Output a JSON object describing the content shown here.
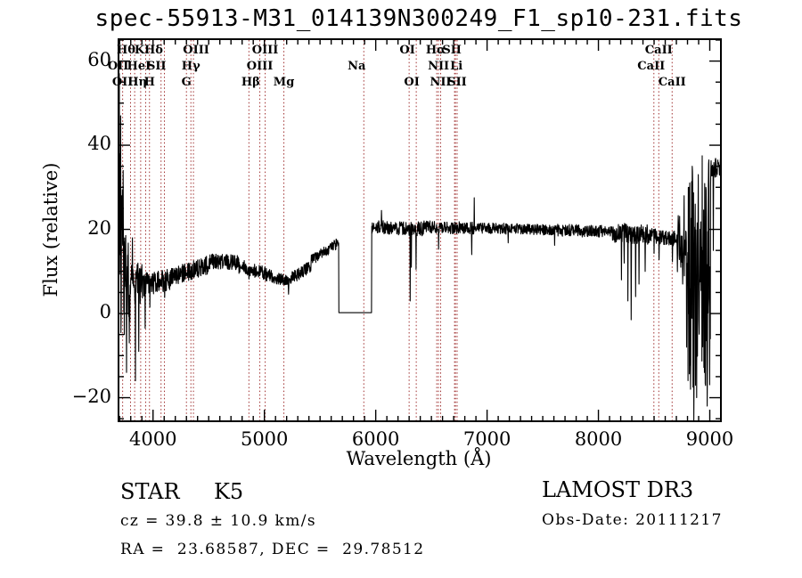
{
  "page": {
    "title": "spec-55913-M31_014139N300249_F1_sp10-231.fits",
    "background": "#ffffff"
  },
  "info": {
    "class_label": "STAR",
    "subclass": "K5",
    "cz_line": "cz = 39.8 ± 10.9 km/s",
    "radec_line": "RA =  23.68587, DEC =  29.78512",
    "survey": "LAMOST DR3",
    "obs_date_line": "Obs-Date: 20111217"
  },
  "colors": {
    "spectrum_line": "#000000",
    "spectral_marker": "#a03030",
    "axis": "#000000",
    "background": "#ffffff"
  },
  "chart_data": {
    "type": "line",
    "title": "spec-55913-M31_014139N300249_F1_sp10-231.fits",
    "xlabel": "Wavelength (Å)",
    "ylabel": "Flux (relative)",
    "xlim": [
      3690,
      9100
    ],
    "ylim": [
      -25.6,
      65.2
    ],
    "xticks": [
      4000,
      5000,
      6000,
      7000,
      8000,
      9000
    ],
    "yticks": [
      -20,
      0,
      20,
      40,
      60
    ],
    "x_minor_step": 100,
    "y_minor_step": 5,
    "grid": false,
    "legend": null,
    "spectral_lines_angstrom": [
      3727,
      3798,
      3835,
      3889,
      3934,
      3968,
      4072,
      4102,
      4300,
      4340,
      4363,
      4861,
      4959,
      5007,
      5175,
      5893,
      6300,
      6364,
      6548,
      6563,
      6583,
      6708,
      6716,
      6731,
      8498,
      8542,
      8662
    ],
    "line_labels": [
      {
        "text": "Hθ",
        "row": 1,
        "wavelength": 3798,
        "dx": -5
      },
      {
        "text": "K",
        "row": 1,
        "wavelength": 3934,
        "dx": -7
      },
      {
        "text": "Hδ",
        "row": 1,
        "wavelength": 4102,
        "dx": -12
      },
      {
        "text": "OIII",
        "row": 1,
        "wavelength": 4363,
        "dx": 3
      },
      {
        "text": "OIII",
        "row": 1,
        "wavelength": 5007,
        "dx": 0
      },
      {
        "text": "OI",
        "row": 1,
        "wavelength": 6300,
        "dx": -2
      },
      {
        "text": "Hα",
        "row": 1,
        "wavelength": 6563,
        "dx": -3
      },
      {
        "text": "SII",
        "row": 1,
        "wavelength": 6716,
        "dx": -4
      },
      {
        "text": "CaII",
        "row": 1,
        "wavelength": 8542,
        "dx": 0
      },
      {
        "text": "OII",
        "row": 2,
        "wavelength": 3727,
        "dx": -5
      },
      {
        "text": "HeI",
        "row": 2,
        "wavelength": 3889,
        "dx": -2
      },
      {
        "text": "SII",
        "row": 2,
        "wavelength": 4072,
        "dx": -5
      },
      {
        "text": "Hγ",
        "row": 2,
        "wavelength": 4340,
        "dx": 0
      },
      {
        "text": "OIII",
        "row": 2,
        "wavelength": 4959,
        "dx": 0
      },
      {
        "text": "Na",
        "row": 2,
        "wavelength": 5893,
        "dx": -8
      },
      {
        "text": "NII",
        "row": 2,
        "wavelength": 6548,
        "dx": 2
      },
      {
        "text": "Li",
        "row": 2,
        "wavelength": 6708,
        "dx": 2
      },
      {
        "text": "CaII",
        "row": 2,
        "wavelength": 8498,
        "dx": -3
      },
      {
        "text": "OII",
        "row": 3,
        "wavelength": 3727,
        "dx": 0
      },
      {
        "text": "Hη",
        "row": 3,
        "wavelength": 3835,
        "dx": 3
      },
      {
        "text": "H",
        "row": 3,
        "wavelength": 3968,
        "dx": 0
      },
      {
        "text": "G",
        "row": 3,
        "wavelength": 4300,
        "dx": 0
      },
      {
        "text": "Hβ",
        "row": 3,
        "wavelength": 4861,
        "dx": 2
      },
      {
        "text": "Mg",
        "row": 3,
        "wavelength": 5175,
        "dx": 0
      },
      {
        "text": "OI",
        "row": 3,
        "wavelength": 6364,
        "dx": -5
      },
      {
        "text": "NII",
        "row": 3,
        "wavelength": 6583,
        "dx": 0
      },
      {
        "text": "SII",
        "row": 3,
        "wavelength": 6731,
        "dx": 0
      },
      {
        "text": "CaII",
        "row": 3,
        "wavelength": 8662,
        "dx": 0
      }
    ],
    "spectrum": {
      "range": [
        3692,
        9098
      ],
      "sample_step": 2.5,
      "clip": [
        -25.4,
        64.0
      ],
      "gap_zero_flux": [
        5668,
        5963
      ],
      "baseline": [
        [
          3692,
          3725,
          18,
          12,
          26
        ],
        [
          3725,
          3795,
          10,
          8,
          10
        ],
        [
          3795,
          3905,
          7.5,
          7,
          5
        ],
        [
          3905,
          4150,
          6.8,
          8,
          2.8
        ],
        [
          4150,
          4520,
          8.5,
          11.8,
          2.2
        ],
        [
          4520,
          4770,
          12.4,
          12.2,
          1.8
        ],
        [
          4770,
          5010,
          11.3,
          9.8,
          1.8
        ],
        [
          5010,
          5215,
          9.3,
          7.6,
          1.5
        ],
        [
          5215,
          5420,
          8,
          11.2,
          1.5
        ],
        [
          5420,
          5668,
          12.6,
          16.9,
          1.3
        ],
        [
          5668,
          5963,
          0.2,
          0.2,
          0
        ],
        [
          5963,
          6285,
          20.6,
          20.2,
          1.6
        ],
        [
          6285,
          6430,
          20,
          20.2,
          1.7
        ],
        [
          6430,
          6905,
          20.6,
          20.3,
          1.5
        ],
        [
          6905,
          7620,
          20.3,
          19.9,
          1.3
        ],
        [
          7620,
          8125,
          19.8,
          19.4,
          1.5
        ],
        [
          8125,
          8455,
          19.2,
          18.8,
          2.4
        ],
        [
          8455,
          8705,
          18.6,
          17.8,
          1.8
        ],
        [
          8705,
          8802,
          16.5,
          12,
          8
        ],
        [
          8802,
          9008,
          8,
          10,
          27
        ],
        [
          9008,
          9098,
          34.5,
          35,
          2.3
        ]
      ],
      "spikes": [
        [
          3697,
          57
        ],
        [
          3702,
          38
        ],
        [
          3709,
          47
        ],
        [
          3716,
          28
        ],
        [
          3731,
          34
        ],
        [
          3742,
          -5
        ],
        [
          3762,
          -14
        ],
        [
          3788,
          -7
        ],
        [
          3815,
          18
        ],
        [
          3843,
          -16
        ],
        [
          3872,
          -9
        ],
        [
          3930,
          -3.5
        ],
        [
          3971,
          1.5
        ],
        [
          4104,
          3.8
        ],
        [
          4664,
          14
        ],
        [
          4862,
          8.2
        ],
        [
          5218,
          4.6
        ],
        [
          6052,
          24.5
        ],
        [
          6310,
          3
        ],
        [
          6320,
          11
        ],
        [
          6363,
          10.5
        ],
        [
          6565,
          15.3
        ],
        [
          6862,
          14
        ],
        [
          6884,
          27.5
        ],
        [
          7190,
          16.8
        ],
        [
          7608,
          16.2
        ],
        [
          8207,
          8
        ],
        [
          8232,
          12
        ],
        [
          8264,
          3
        ],
        [
          8294,
          -1.5
        ],
        [
          8334,
          4
        ],
        [
          8364,
          7
        ],
        [
          8420,
          10
        ],
        [
          8500,
          14.3
        ],
        [
          8544,
          12.8
        ],
        [
          8664,
          12.3
        ],
        [
          8770,
          28
        ],
        [
          8793,
          -8
        ],
        [
          8813,
          30
        ],
        [
          8827,
          -18
        ],
        [
          8843,
          35
        ],
        [
          8857,
          -25.4
        ],
        [
          8869,
          26
        ],
        [
          8883,
          -20
        ],
        [
          8897,
          33
        ],
        [
          8912,
          20
        ],
        [
          8933,
          37.5
        ],
        [
          8953,
          -14
        ],
        [
          8964,
          30
        ],
        [
          8978,
          -22
        ],
        [
          8993,
          36.5
        ],
        [
          9032,
          15
        ]
      ]
    }
  }
}
